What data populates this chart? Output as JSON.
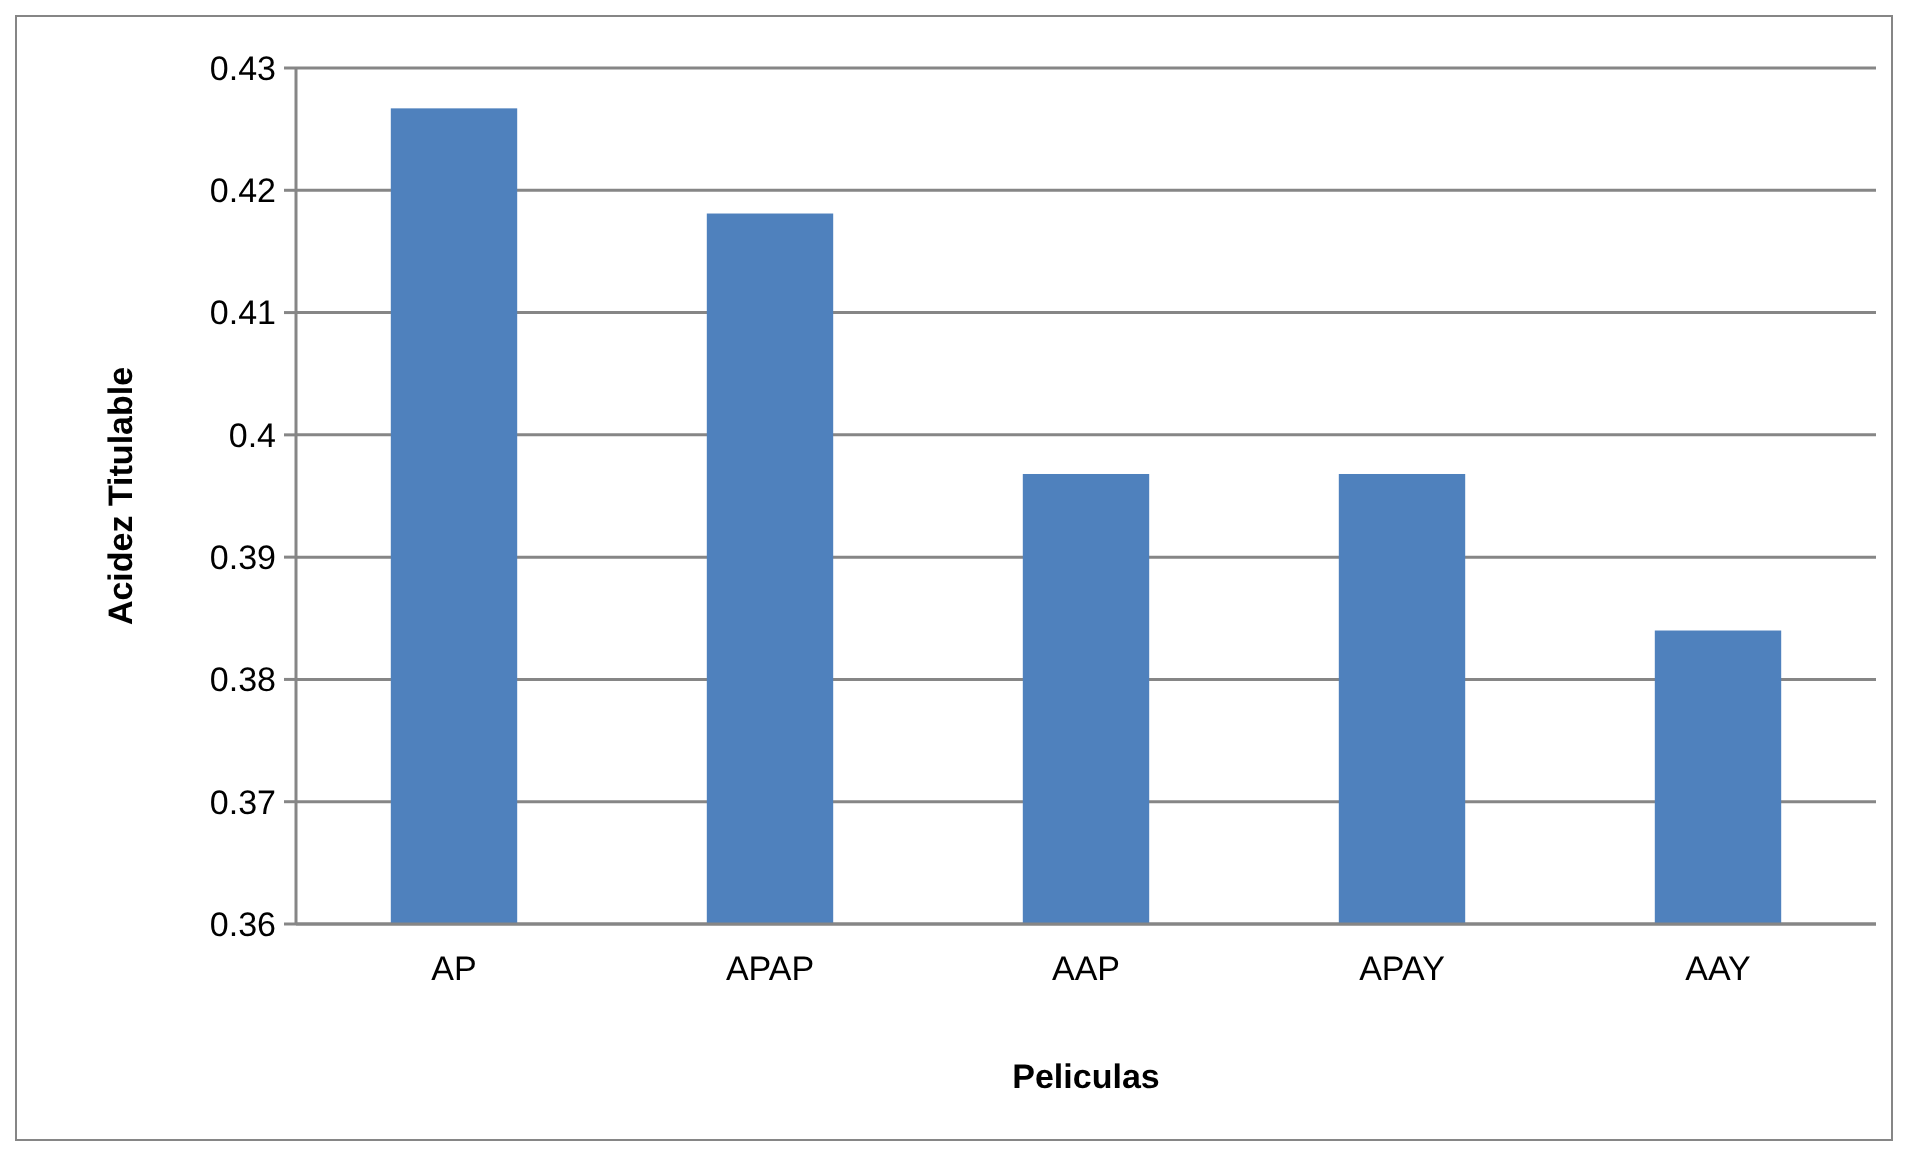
{
  "chart_data": {
    "type": "bar",
    "xlabel": "Peliculas",
    "ylabel": "Acidez Titulable",
    "categories": [
      "AP",
      "APAP",
      "AAP",
      "APAY",
      "AAY"
    ],
    "values": [
      0.4267,
      0.4181,
      0.3968,
      0.3968,
      0.384
    ],
    "color": "#4f81bd",
    "ylim": [
      0.36,
      0.43
    ],
    "yticks": [
      0.36,
      0.37,
      0.38,
      0.39,
      {
        "value": 0.4,
        "label": "0.4"
      },
      0.41,
      0.42,
      0.43
    ],
    "grid": "y"
  }
}
